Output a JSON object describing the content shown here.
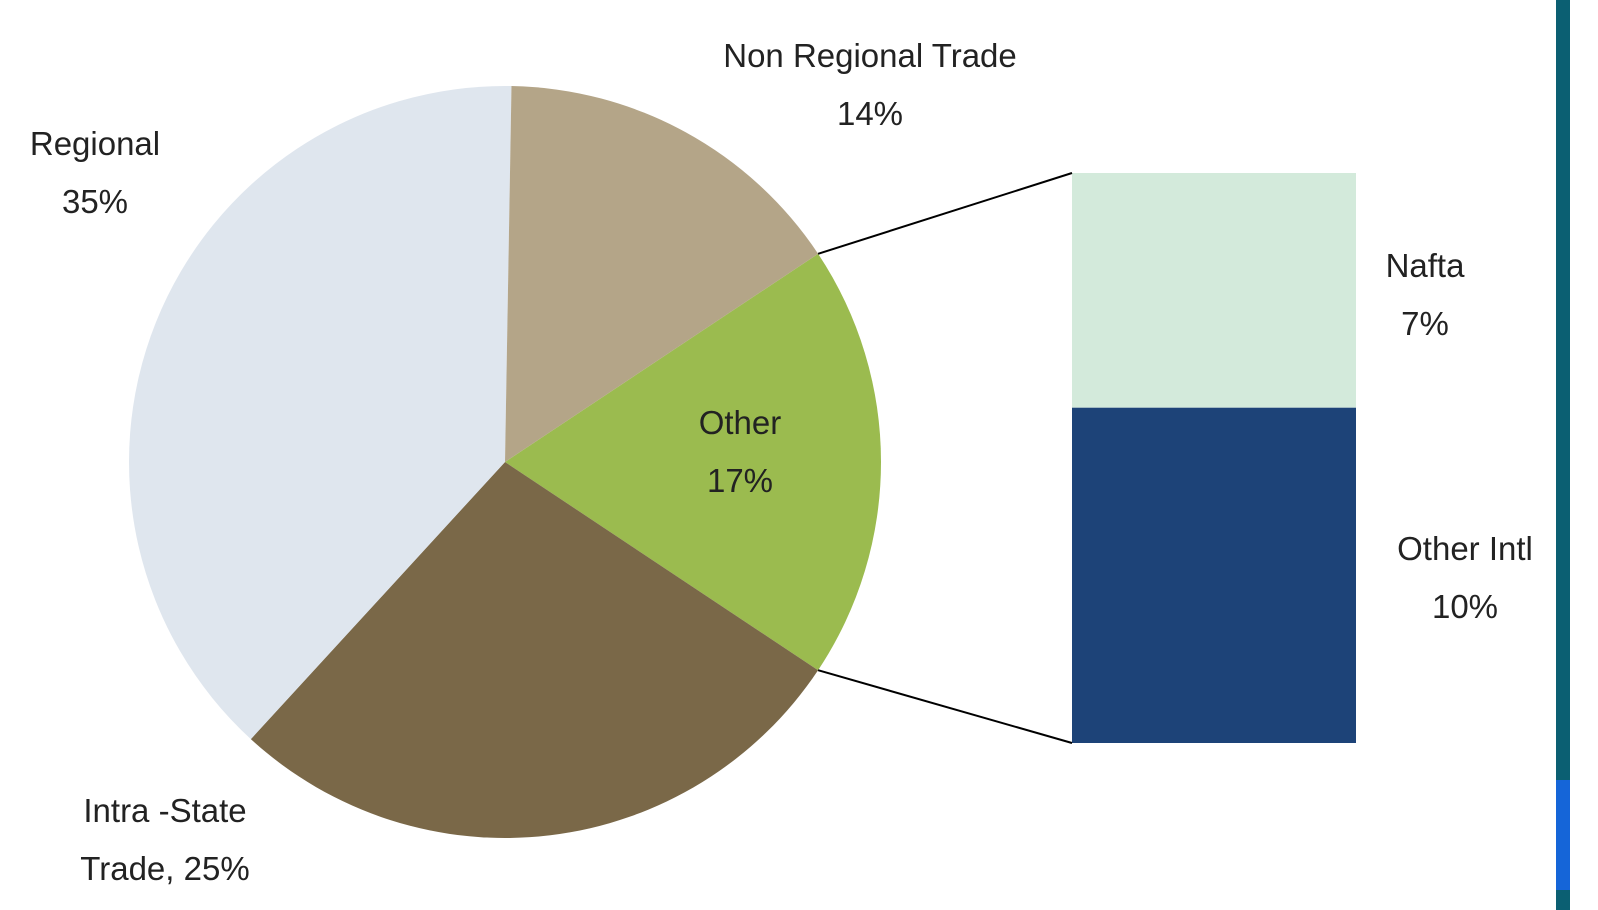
{
  "chart_data": {
    "type": "pie",
    "categories": [
      "Other",
      "Intra -State Trade,",
      "Regional",
      "Non Regional Trade"
    ],
    "values": [
      17,
      25,
      35,
      14
    ],
    "value_labels": [
      "17%",
      "25%",
      "35%",
      "14%"
    ],
    "colors": [
      "#9bbb4f",
      "#7a6848",
      "#dfe6ee",
      "#b4a588"
    ],
    "secondary": {
      "categories": [
        "Nafta",
        "Other Intl"
      ],
      "values": [
        7,
        10
      ],
      "value_labels": [
        "7%",
        "10%"
      ],
      "colors": [
        "#d3eadb",
        "#1d4378"
      ]
    }
  }
}
